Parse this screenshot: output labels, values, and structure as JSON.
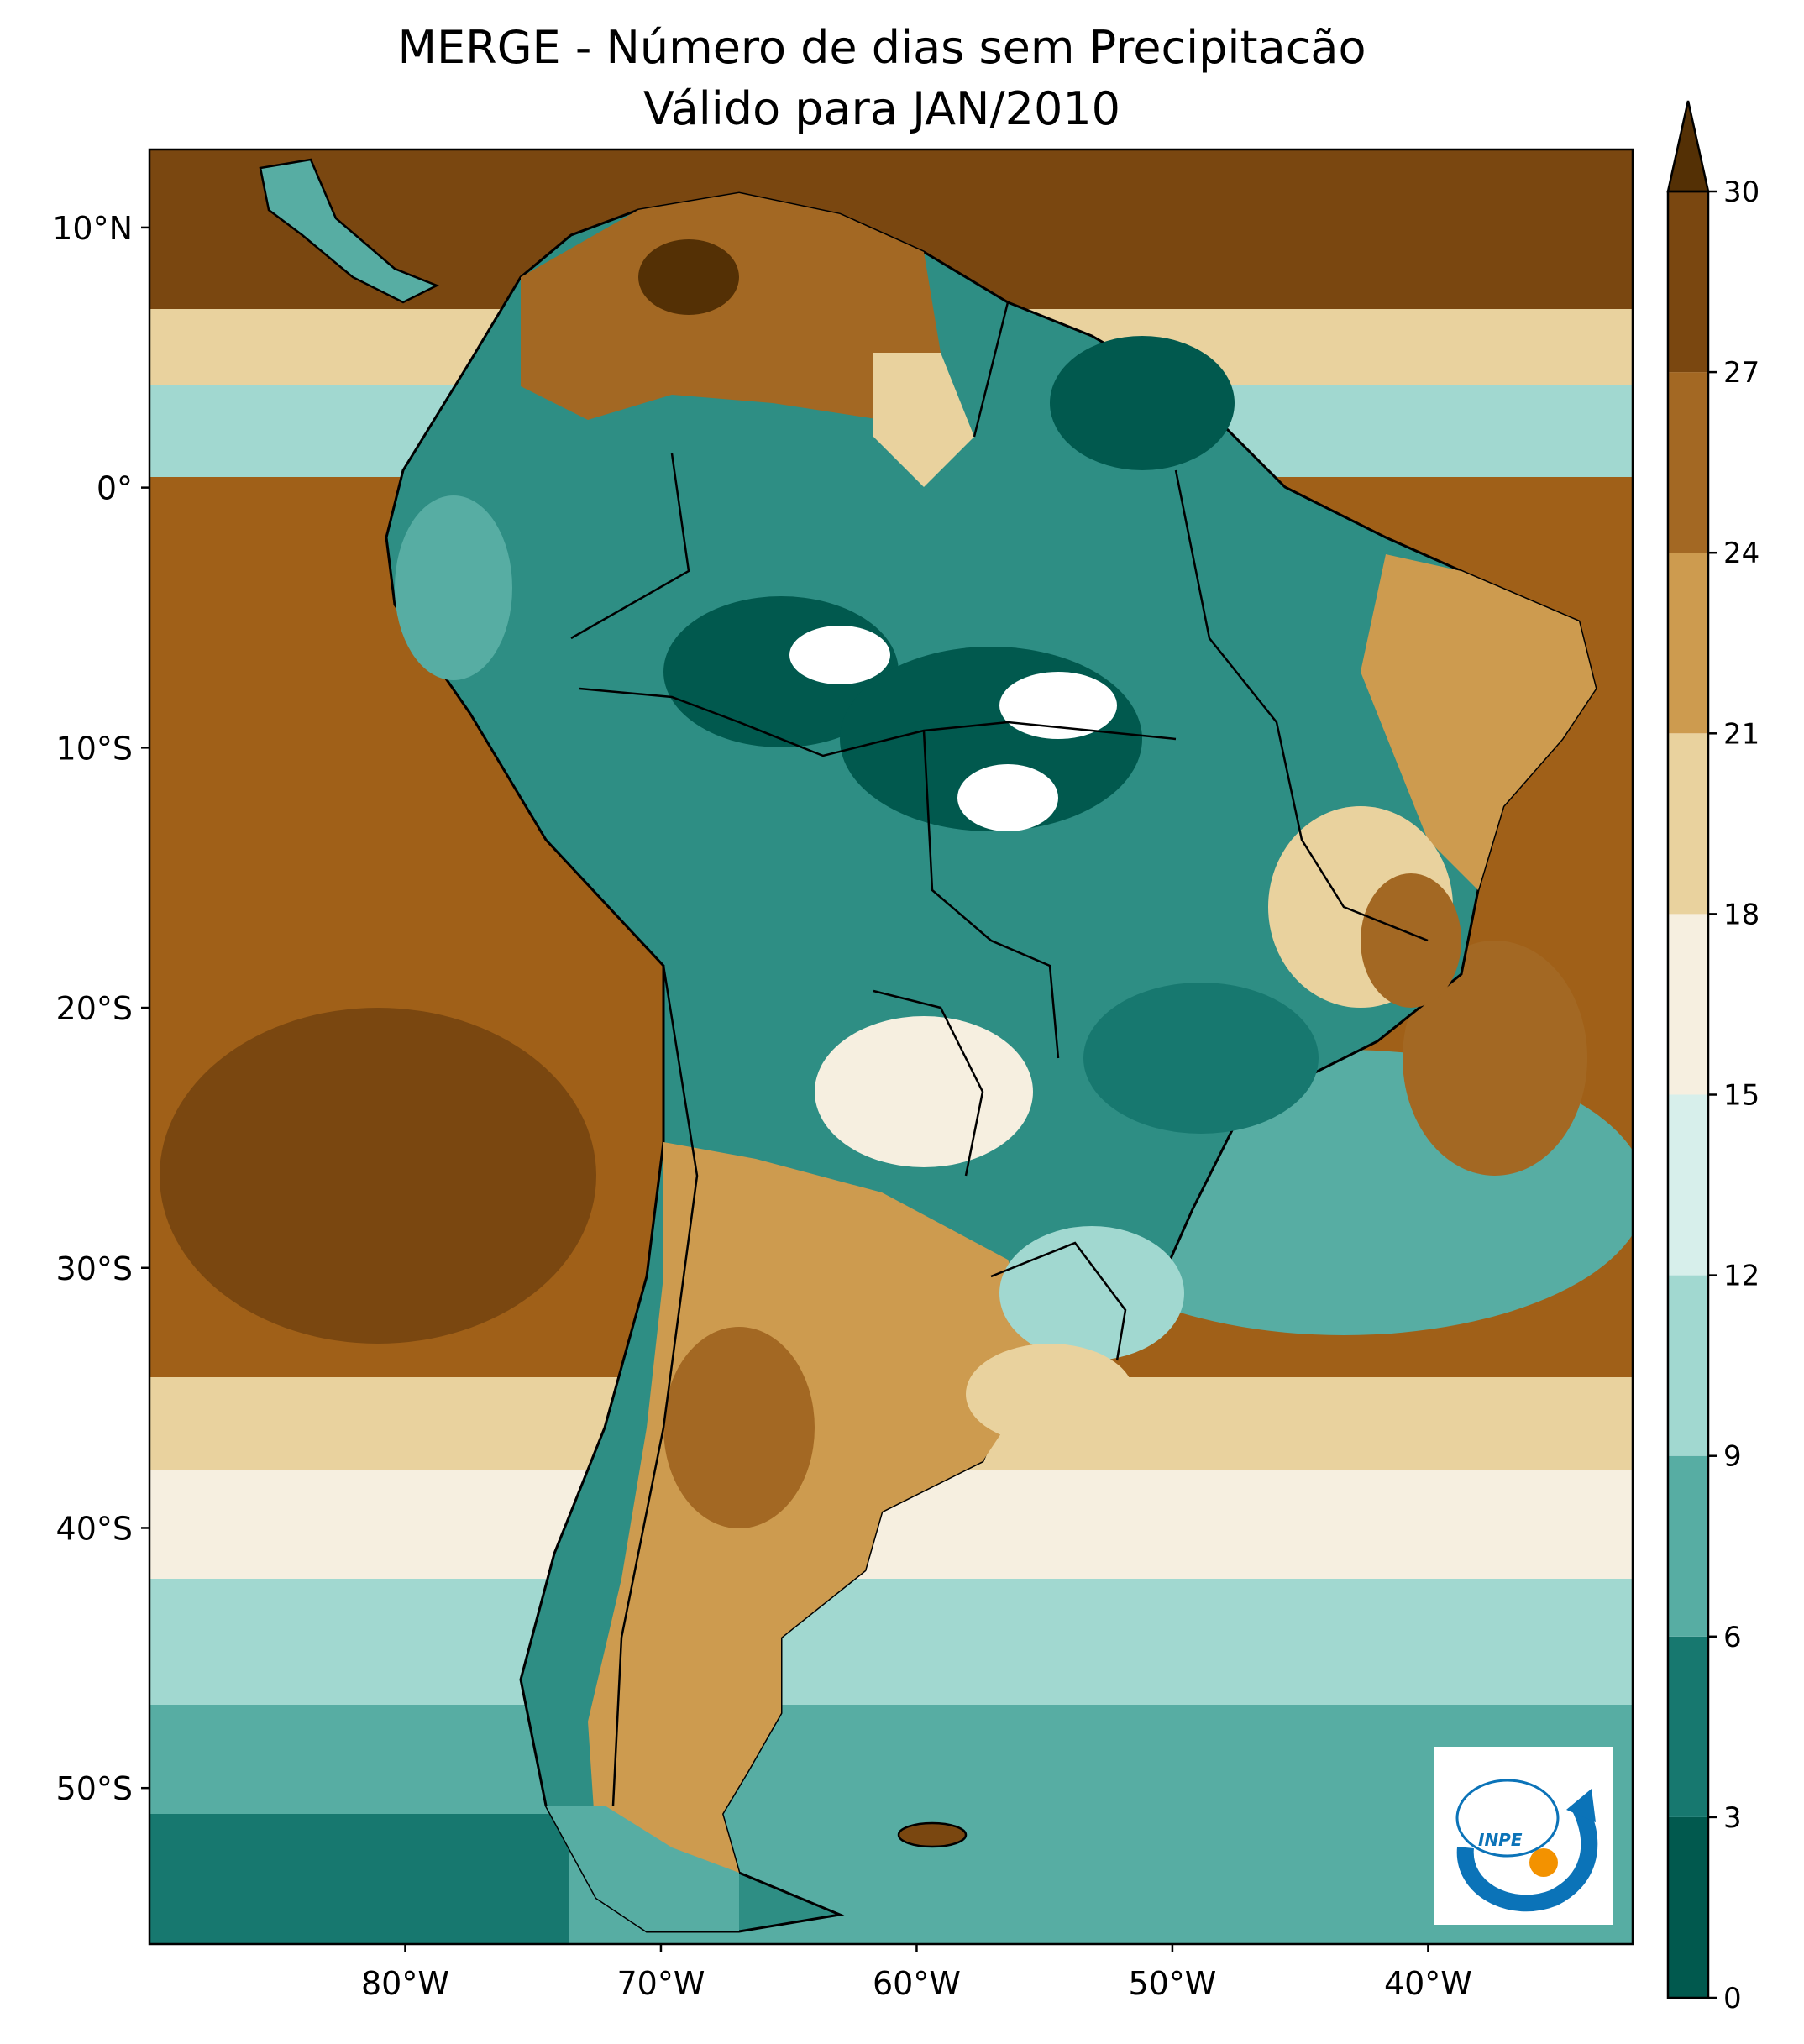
{
  "title": {
    "line1": "MERGE - Número de dias sem Precipitacão",
    "line2": "Válido para JAN/2010"
  },
  "map": {
    "lat_ticks": [
      {
        "value": 10,
        "label": "10°N"
      },
      {
        "value": 0,
        "label": "0°"
      },
      {
        "value": -10,
        "label": "10°S"
      },
      {
        "value": -20,
        "label": "20°S"
      },
      {
        "value": -30,
        "label": "30°S"
      },
      {
        "value": -40,
        "label": "40°S"
      },
      {
        "value": -50,
        "label": "50°S"
      }
    ],
    "lon_ticks": [
      {
        "value": -80,
        "label": "80°W"
      },
      {
        "value": -70,
        "label": "70°W"
      },
      {
        "value": -60,
        "label": "60°W"
      },
      {
        "value": -50,
        "label": "50°W"
      },
      {
        "value": -40,
        "label": "40°W"
      }
    ],
    "extent": {
      "lon": [
        -90,
        -32
      ],
      "lat": [
        -56,
        13
      ]
    },
    "ocean_color": "#a06018",
    "land_color": "#2e8e84"
  },
  "colorbar": {
    "ticks": [
      "0",
      "3",
      "6",
      "9",
      "12",
      "15",
      "18",
      "21",
      "24",
      "27",
      "30"
    ],
    "colors": [
      "#01594e",
      "#17786f",
      "#57ada3",
      "#a1d8d0",
      "#d7efeb",
      "#f6efe0",
      "#e9d29e",
      "#cd9b4f",
      "#a36823",
      "#7a4710",
      "#543005"
    ],
    "extend": "max"
  },
  "logo": {
    "text": "INPE",
    "primary_color": "#0b73b8",
    "accent_color": "#f39200"
  }
}
